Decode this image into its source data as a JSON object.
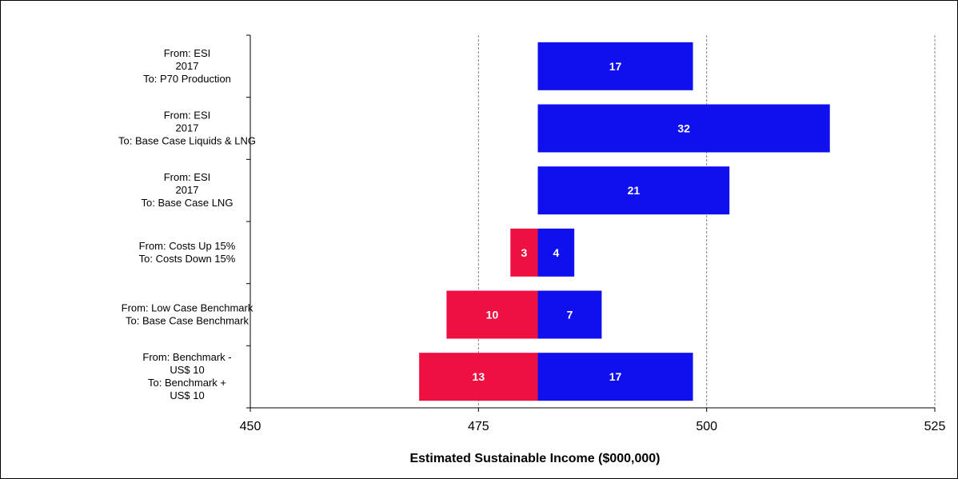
{
  "chart_data": {
    "type": "bar",
    "orientation": "horizontal",
    "variant": "tornado",
    "base_value": 481.5,
    "categories": [
      [
        "From: ESI",
        "2017",
        "To: P70 Production"
      ],
      [
        "From: ESI",
        "2017",
        "To: Base Case Liquids & LNG"
      ],
      [
        "From: ESI",
        "2017",
        "To: Base Case LNG"
      ],
      [
        "From: Costs Up 15%",
        "To: Costs Down 15%"
      ],
      [
        "From: Low Case Benchmark",
        "To: Base Case Benchmark"
      ],
      [
        "From: Benchmark -",
        "US$ 10",
        "To: Benchmark +",
        "US$ 10"
      ]
    ],
    "series": [
      {
        "color": "#EE1040",
        "direction": "decrease",
        "values": [
          null,
          null,
          null,
          3,
          10,
          13
        ]
      },
      {
        "color": "#1010EE",
        "direction": "increase",
        "values": [
          17,
          32,
          21,
          4,
          7,
          17
        ]
      }
    ],
    "xlabel": "Estimated Sustainable Income ($000,000)",
    "xlim": [
      450,
      525
    ],
    "xticks": [
      450,
      475,
      500,
      525
    ],
    "gridlines": [
      475,
      500,
      525
    ],
    "grid": "vertical dashed"
  }
}
